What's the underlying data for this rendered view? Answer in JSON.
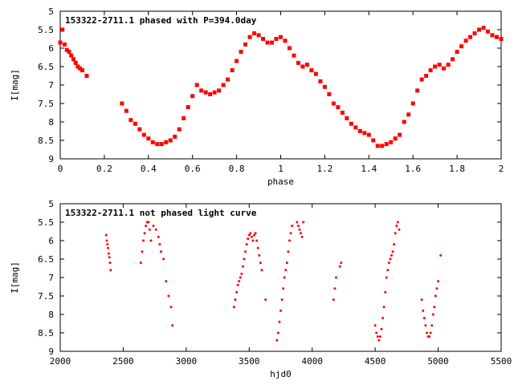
{
  "chart_data": [
    {
      "type": "scatter",
      "title": "153322-2711.1 phased with P=394.0day",
      "xlabel": "phase",
      "ylabel": "I[mag]",
      "xlim": [
        0,
        2
      ],
      "ylim": [
        9,
        5
      ],
      "y_inverted": true,
      "x_ticks": [
        "0",
        "0.2",
        "0.4",
        "0.6",
        "0.8",
        "1",
        "1.2",
        "1.4",
        "1.6",
        "1.8",
        "2"
      ],
      "y_ticks": [
        "5",
        "5.5",
        "6",
        "6.5",
        "7",
        "7.5",
        "8",
        "8.5",
        "9"
      ],
      "marker_color": "#ff0000",
      "marker": "square",
      "series": [
        {
          "x": [
            0.0,
            0.01,
            0.02,
            0.03,
            0.04,
            0.05,
            0.06,
            0.07,
            0.08,
            0.09,
            0.1,
            0.12,
            0.28,
            0.3,
            0.32,
            0.34,
            0.36,
            0.38,
            0.4,
            0.42,
            0.44,
            0.46,
            0.48,
            0.5,
            0.52,
            0.54,
            0.56,
            0.58,
            0.6,
            0.62,
            0.64,
            0.66,
            0.68,
            0.7,
            0.72,
            0.74,
            0.76,
            0.78,
            0.8,
            0.82,
            0.84,
            0.86,
            0.88,
            0.9,
            0.92,
            0.94,
            0.96,
            0.98,
            1.0,
            1.02,
            1.04,
            1.06,
            1.08,
            1.1,
            1.12,
            1.14,
            1.16,
            1.18,
            1.2,
            1.22,
            1.24,
            1.26,
            1.28,
            1.3,
            1.32,
            1.34,
            1.36,
            1.38,
            1.4,
            1.42,
            1.44,
            1.46,
            1.48,
            1.5,
            1.52,
            1.54,
            1.56,
            1.58,
            1.6,
            1.62,
            1.64,
            1.66,
            1.68,
            1.7,
            1.72,
            1.74,
            1.76,
            1.78,
            1.8,
            1.82,
            1.84,
            1.86,
            1.88,
            1.9,
            1.92,
            1.94,
            1.96,
            1.98,
            2.0
          ],
          "y": [
            5.85,
            5.5,
            5.9,
            6.05,
            6.1,
            6.2,
            6.3,
            6.4,
            6.5,
            6.55,
            6.6,
            6.75,
            7.5,
            7.7,
            7.95,
            8.05,
            8.2,
            8.35,
            8.45,
            8.55,
            8.6,
            8.6,
            8.55,
            8.5,
            8.4,
            8.2,
            7.9,
            7.6,
            7.3,
            7.0,
            7.15,
            7.2,
            7.25,
            7.2,
            7.15,
            7.0,
            6.85,
            6.6,
            6.35,
            6.1,
            5.9,
            5.7,
            5.6,
            5.65,
            5.75,
            5.85,
            5.85,
            5.75,
            5.7,
            5.8,
            6.0,
            6.2,
            6.4,
            6.5,
            6.45,
            6.6,
            6.7,
            6.9,
            7.05,
            7.25,
            7.5,
            7.6,
            7.75,
            7.9,
            8.05,
            8.15,
            8.25,
            8.3,
            8.35,
            8.5,
            8.65,
            8.65,
            8.6,
            8.55,
            8.45,
            8.35,
            8.0,
            7.8,
            7.5,
            7.15,
            6.85,
            6.75,
            6.6,
            6.5,
            6.45,
            6.55,
            6.45,
            6.3,
            6.1,
            5.95,
            5.8,
            5.7,
            5.6,
            5.5,
            5.45,
            5.55,
            5.65,
            5.7,
            5.75
          ]
        }
      ]
    },
    {
      "type": "scatter",
      "title": "153322-2711.1 not phased light curve",
      "xlabel": "hjd0",
      "ylabel": "I[mag]",
      "xlim": [
        2000,
        5500
      ],
      "ylim": [
        9,
        5
      ],
      "y_inverted": true,
      "x_ticks": [
        "2000",
        "2500",
        "3000",
        "3500",
        "4000",
        "4500",
        "5000",
        "5500"
      ],
      "y_ticks": [
        "5",
        "5.5",
        "6",
        "6.5",
        "7",
        "7.5",
        "8",
        "8.5",
        "9"
      ],
      "marker_color": "#ff0000",
      "marker": "dot",
      "series": [
        {
          "x": [
            2365,
            2370,
            2375,
            2380,
            2385,
            2390,
            2395,
            2400,
            2640,
            2650,
            2660,
            2670,
            2680,
            2690,
            2700,
            2710,
            2720,
            2740,
            2760,
            2780,
            2790,
            2800,
            2820,
            2840,
            2860,
            2880,
            2890,
            3380,
            3390,
            3400,
            3410,
            3420,
            3430,
            3440,
            3450,
            3460,
            3470,
            3480,
            3490,
            3500,
            3510,
            3520,
            3530,
            3540,
            3550,
            3560,
            3570,
            3580,
            3590,
            3600,
            3630,
            3720,
            3730,
            3740,
            3750,
            3760,
            3770,
            3780,
            3790,
            3800,
            3810,
            3820,
            3830,
            3840,
            3880,
            3890,
            3900,
            3910,
            3920,
            3930,
            4170,
            4180,
            4190,
            4220,
            4230,
            4500,
            4510,
            4520,
            4530,
            4540,
            4550,
            4560,
            4570,
            4580,
            4590,
            4600,
            4610,
            4620,
            4630,
            4640,
            4650,
            4660,
            4670,
            4680,
            4690,
            4870,
            4880,
            4890,
            4900,
            4910,
            4920,
            4930,
            4940,
            4950,
            4960,
            4970,
            4980,
            4990,
            5000,
            5020
          ],
          "y": [
            5.85,
            6.0,
            6.1,
            6.2,
            6.35,
            6.45,
            6.6,
            6.8,
            6.6,
            6.3,
            6.0,
            5.8,
            5.6,
            5.5,
            5.5,
            5.7,
            6.0,
            5.6,
            5.7,
            5.9,
            6.1,
            6.3,
            6.5,
            7.1,
            7.5,
            7.8,
            8.3,
            7.8,
            7.6,
            7.4,
            7.2,
            7.1,
            7.0,
            6.9,
            6.7,
            6.5,
            6.3,
            6.1,
            5.95,
            5.85,
            5.8,
            5.9,
            6.0,
            5.85,
            5.8,
            6.0,
            6.2,
            6.4,
            6.6,
            6.8,
            7.6,
            8.7,
            8.5,
            8.2,
            7.9,
            7.6,
            7.3,
            7.0,
            6.8,
            6.6,
            6.3,
            6.0,
            5.8,
            5.6,
            5.5,
            5.6,
            5.7,
            5.8,
            5.9,
            5.5,
            7.6,
            7.3,
            7.0,
            6.7,
            6.6,
            8.3,
            8.5,
            8.6,
            8.7,
            8.6,
            8.4,
            8.1,
            7.8,
            7.4,
            7.0,
            6.8,
            6.6,
            6.5,
            6.4,
            6.3,
            6.1,
            5.8,
            5.6,
            5.5,
            5.7,
            7.6,
            7.9,
            8.1,
            8.3,
            8.5,
            8.6,
            8.6,
            8.5,
            8.3,
            8.0,
            7.8,
            7.5,
            7.3,
            7.1,
            6.4
          ]
        }
      ]
    }
  ]
}
